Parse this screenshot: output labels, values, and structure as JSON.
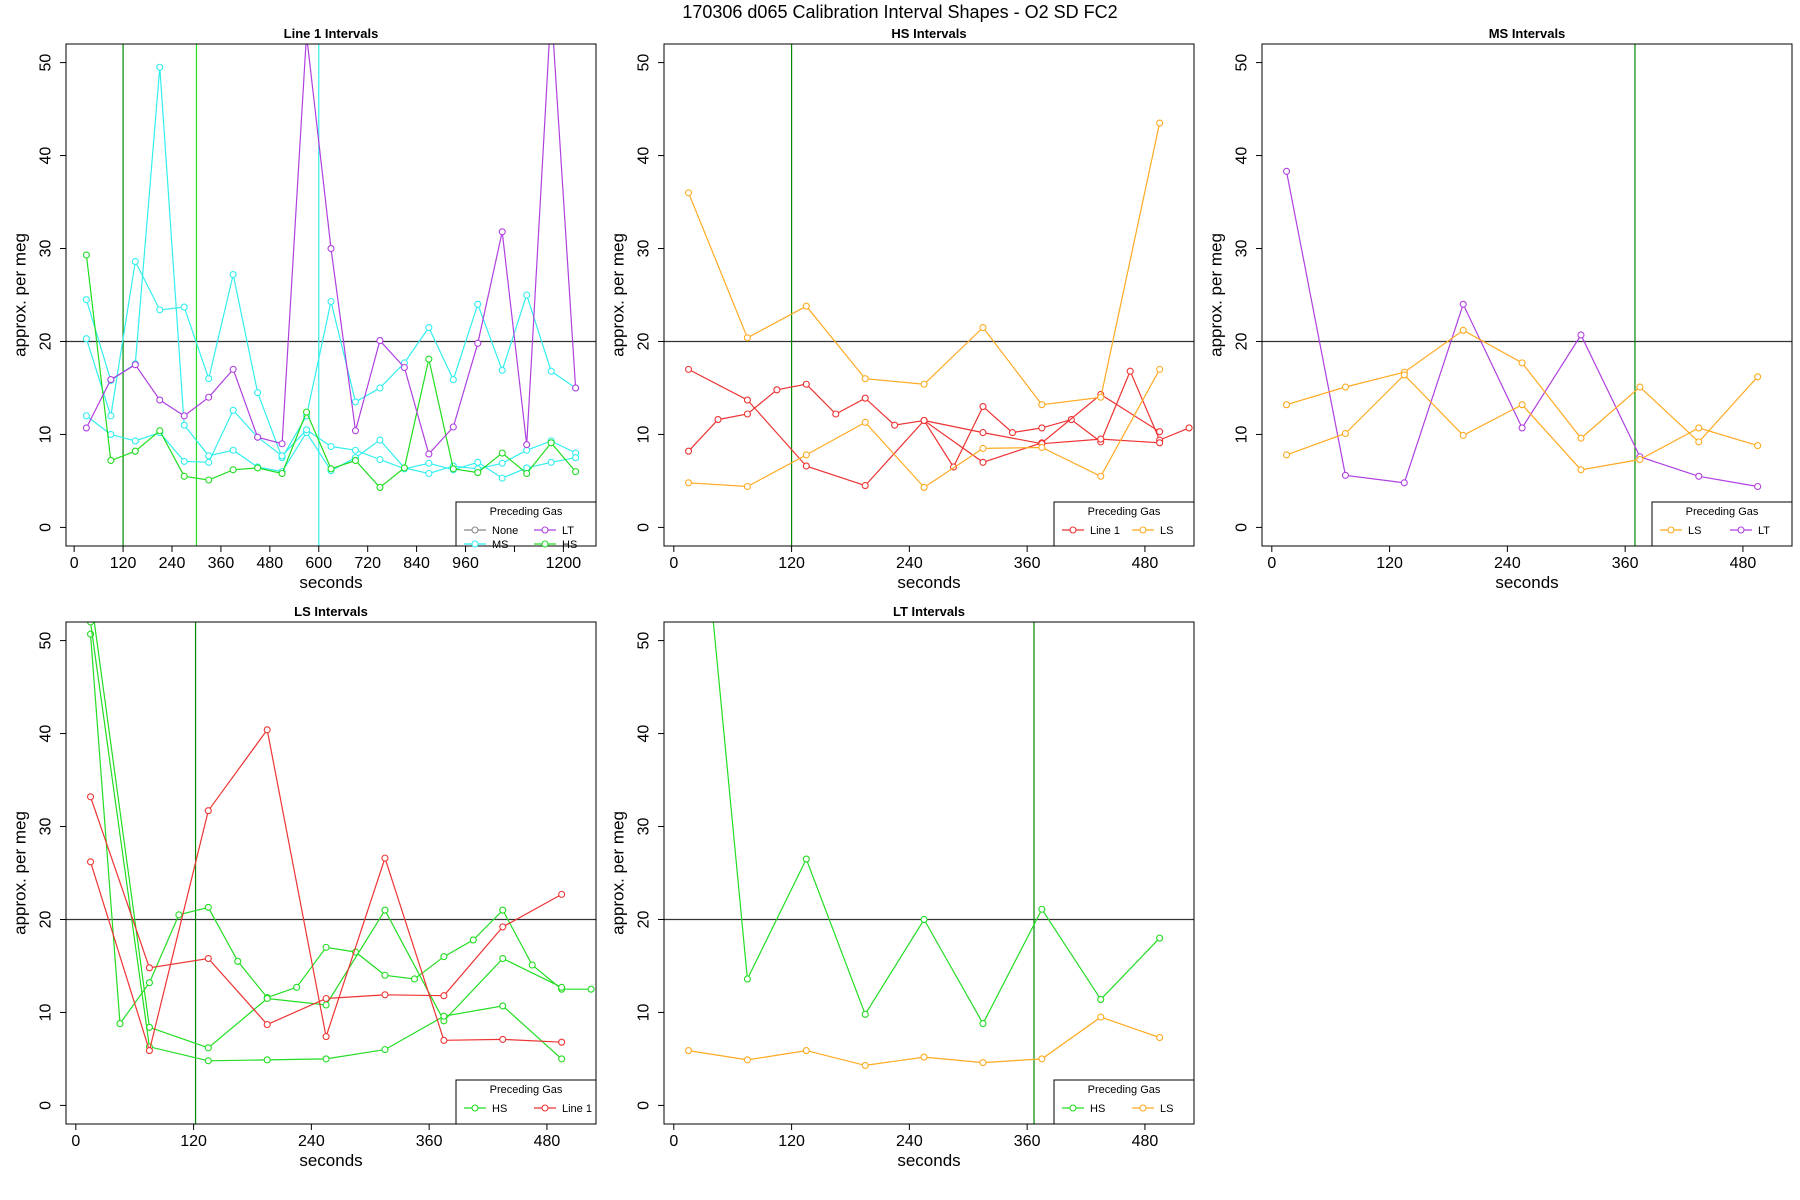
{
  "figure_title": "170306   d065   Calibration Interval Shapes - O2 SD FC2",
  "legend_title": "Preceding Gas",
  "colors": {
    "None": "#888888",
    "MS": "#33eeee",
    "LT": "#b040e0",
    "HS": "#22dd22",
    "Line 1": "#ee3333",
    "LS": "#ffaa22",
    "ref": "#333333",
    "marker": "#008800"
  },
  "chart_data": [
    {
      "type": "line",
      "title": "Line 1 Intervals",
      "xlabel": "seconds",
      "ylabel": "approx. per meg",
      "xlim": [
        -20,
        1280
      ],
      "ylim": [
        -2,
        52
      ],
      "xticks": [
        0,
        120,
        240,
        360,
        480,
        600,
        720,
        840,
        960,
        1080,
        1200
      ],
      "xtick_labels": [
        "0",
        "120",
        "240",
        "360",
        "480",
        "600",
        "720",
        "840",
        "960",
        "",
        "1200"
      ],
      "yticks": [
        0,
        10,
        20,
        30,
        40,
        50
      ],
      "hline": 20,
      "vlines": [
        {
          "x": 120,
          "gas": "marker"
        },
        {
          "x": 300,
          "gas": "HS"
        },
        {
          "x": 600,
          "gas": "MS"
        }
      ],
      "legend": {
        "position": "bottom-right",
        "cols": 2,
        "entries": [
          "None",
          "LT",
          "MS",
          "HS"
        ]
      },
      "series": [
        {
          "gas": "MS",
          "x": [
            30,
            90,
            150,
            210,
            270,
            330,
            390,
            450,
            510,
            570,
            630,
            690,
            750,
            810,
            870,
            930,
            990,
            1050,
            1110,
            1170,
            1230
          ],
          "y": [
            20.3,
            12,
            28.6,
            23.4,
            23.7,
            16,
            27.2,
            14.5,
            7.5,
            12,
            24.3,
            13.5,
            15,
            17.7,
            21.5,
            15.9,
            24,
            16.9,
            25,
            16.8,
            15
          ]
        },
        {
          "gas": "MS",
          "x": [
            30,
            90,
            150,
            210,
            270,
            330,
            390,
            450,
            510,
            570,
            630,
            690,
            750,
            810,
            870,
            930,
            990,
            1050,
            1110,
            1170,
            1230
          ],
          "y": [
            24.5,
            15.8,
            17.6,
            49.5,
            11,
            7.7,
            8.3,
            6.5,
            6,
            10.2,
            6.1,
            7.5,
            9.4,
            6.4,
            5.8,
            6.6,
            6.3,
            6.9,
            8.3,
            9.3,
            8
          ]
        },
        {
          "gas": "MS",
          "x": [
            30,
            90,
            150,
            210,
            270,
            330,
            390,
            450,
            510,
            570,
            630,
            690,
            750,
            810,
            870,
            930,
            990,
            1050,
            1110,
            1170,
            1230
          ],
          "y": [
            12,
            10,
            9.3,
            10.2,
            7.1,
            7,
            12.6,
            9.7,
            7.7,
            10.5,
            8.7,
            8.3,
            7.3,
            6.3,
            6.9,
            6.2,
            7,
            5.3,
            6.4,
            7,
            7.5
          ]
        },
        {
          "gas": "HS",
          "x": [
            30,
            90,
            150,
            210,
            270,
            330,
            390,
            450,
            510,
            570,
            630,
            690,
            750,
            810,
            870,
            930,
            990,
            1050,
            1110,
            1170,
            1230
          ],
          "y": [
            29.3,
            7.2,
            8.2,
            10.4,
            5.5,
            5.1,
            6.2,
            6.4,
            5.8,
            12.4,
            6.3,
            7.2,
            4.3,
            6.4,
            18.1,
            6.3,
            5.9,
            8,
            5.8,
            9.1,
            6
          ]
        },
        {
          "gas": "LT",
          "x": [
            30,
            90,
            150,
            210,
            270,
            330,
            390,
            450,
            510,
            570,
            630,
            690,
            750,
            810,
            870,
            930,
            990,
            1050,
            1110,
            1170,
            1230
          ],
          "y": [
            10.7,
            15.9,
            17.5,
            13.7,
            12,
            14,
            17,
            9.7,
            9,
            53,
            30,
            10.4,
            20.1,
            17.2,
            7.9,
            10.8,
            19.8,
            31.8,
            8.9,
            56,
            15
          ]
        }
      ]
    },
    {
      "type": "line",
      "title": "HS Intervals",
      "xlabel": "seconds",
      "ylabel": "approx. per meg",
      "xlim": [
        -10,
        530
      ],
      "ylim": [
        -2,
        52
      ],
      "xticks": [
        0,
        120,
        240,
        360,
        480
      ],
      "xtick_labels": [
        "0",
        "120",
        "240",
        "360",
        "480"
      ],
      "yticks": [
        0,
        10,
        20,
        30,
        40,
        50
      ],
      "hline": 20,
      "vlines": [
        {
          "x": 120,
          "gas": "marker"
        }
      ],
      "legend": {
        "position": "bottom-right",
        "cols": 2,
        "entries": [
          "Line 1",
          "LS"
        ]
      },
      "series": [
        {
          "gas": "Line 1",
          "x": [
            15,
            45,
            75,
            105,
            135,
            165,
            195,
            225,
            255,
            285,
            315,
            345,
            375,
            405,
            435,
            465,
            495,
            525
          ],
          "y": [
            8.2,
            11.6,
            12.2,
            14.8,
            15.4,
            12.2,
            13.9,
            11,
            11.5,
            6.5,
            13,
            10.2,
            10.7,
            11.6,
            9.2,
            16.8,
            9.4,
            10.7
          ]
        },
        {
          "gas": "Line 1",
          "x": [
            15,
            75,
            135,
            195,
            255,
            315,
            375,
            435,
            495
          ],
          "y": [
            17,
            13.7,
            6.6,
            4.5,
            11.5,
            7,
            9.1,
            14.3,
            10.3
          ]
        },
        {
          "gas": "Line 1",
          "x": [
            255,
            315,
            375,
            435,
            495
          ],
          "y": [
            11.5,
            10.2,
            9,
            9.5,
            9.1
          ]
        },
        {
          "gas": "LS",
          "x": [
            15,
            75,
            135,
            195,
            255,
            315,
            375,
            435,
            495
          ],
          "y": [
            36,
            20.4,
            23.8,
            16,
            15.4,
            21.5,
            13.2,
            14,
            43.5
          ]
        },
        {
          "gas": "LS",
          "x": [
            15,
            75,
            135,
            195,
            255,
            315,
            375,
            435,
            495
          ],
          "y": [
            4.8,
            4.4,
            7.8,
            11.3,
            4.3,
            8.5,
            8.6,
            5.5,
            17
          ]
        }
      ]
    },
    {
      "type": "line",
      "title": "MS Intervals",
      "xlabel": "seconds",
      "ylabel": "approx. per meg",
      "xlim": [
        -10,
        530
      ],
      "ylim": [
        -2,
        52
      ],
      "xticks": [
        0,
        120,
        240,
        360,
        480
      ],
      "xtick_labels": [
        "0",
        "120",
        "240",
        "360",
        "480"
      ],
      "yticks": [
        0,
        10,
        20,
        30,
        40,
        50
      ],
      "hline": 20,
      "vlines": [
        {
          "x": 370,
          "gas": "marker"
        }
      ],
      "legend": {
        "position": "bottom-right",
        "cols": 2,
        "entries": [
          "LS",
          "LT"
        ]
      },
      "series": [
        {
          "gas": "LT",
          "x": [
            15,
            75,
            135,
            195,
            255,
            315,
            375,
            435,
            495
          ],
          "y": [
            38.3,
            5.6,
            4.8,
            24,
            10.7,
            20.7,
            7.6,
            5.5,
            4.4
          ]
        },
        {
          "gas": "LS",
          "x": [
            15,
            75,
            135,
            195,
            255,
            315,
            375,
            435,
            495
          ],
          "y": [
            13.2,
            15.1,
            16.7,
            21.2,
            17.7,
            9.6,
            15.1,
            9.2,
            16.2
          ]
        },
        {
          "gas": "LS",
          "x": [
            15,
            75,
            135,
            195,
            255,
            315,
            375,
            435,
            495
          ],
          "y": [
            7.8,
            10.1,
            16.4,
            9.9,
            13.2,
            6.2,
            7.3,
            10.7,
            8.8
          ]
        }
      ]
    },
    {
      "type": "line",
      "title": "LS Intervals",
      "xlabel": "seconds",
      "ylabel": "approx. per meg",
      "xlim": [
        -10,
        530
      ],
      "ylim": [
        -2,
        52
      ],
      "xticks": [
        0,
        120,
        240,
        360,
        480
      ],
      "xtick_labels": [
        "0",
        "120",
        "240",
        "360",
        "480"
      ],
      "yticks": [
        0,
        10,
        20,
        30,
        40,
        50
      ],
      "hline": 20,
      "vlines": [
        {
          "x": 122,
          "gas": "marker"
        }
      ],
      "legend": {
        "position": "bottom-right",
        "cols": 2,
        "entries": [
          "HS",
          "Line 1"
        ]
      },
      "series": [
        {
          "gas": "HS",
          "x": [
            15,
            45,
            75,
            105,
            135,
            165,
            195,
            225,
            255,
            285,
            315,
            345,
            375,
            405,
            435,
            465,
            495,
            525
          ],
          "y": [
            50.7,
            8.8,
            13.2,
            20.5,
            21.3,
            15.5,
            11.6,
            12.7,
            17,
            16.5,
            14,
            13.6,
            16,
            17.8,
            21,
            15.1,
            12.5,
            12.5
          ]
        },
        {
          "gas": "HS",
          "x": [
            15,
            75,
            135,
            195,
            255,
            315,
            375,
            435,
            495
          ],
          "y": [
            55,
            8.4,
            6.2,
            11.5,
            10.8,
            21,
            9.1,
            15.8,
            12.7
          ]
        },
        {
          "gas": "HS",
          "x": [
            15,
            75,
            135,
            195,
            255,
            315,
            375,
            435,
            495
          ],
          "y": [
            52,
            6.3,
            4.8,
            4.9,
            5,
            6,
            9.6,
            10.7,
            5
          ]
        },
        {
          "gas": "Line 1",
          "x": [
            15,
            75,
            135,
            195,
            255,
            315,
            375,
            435,
            495
          ],
          "y": [
            33.2,
            14.8,
            15.8,
            8.7,
            11.5,
            11.9,
            11.8,
            19.2,
            22.7
          ]
        },
        {
          "gas": "Line 1",
          "x": [
            15,
            75,
            135,
            195,
            255,
            315,
            375,
            435,
            495
          ],
          "y": [
            26.2,
            5.9,
            31.7,
            40.4,
            7.4,
            26.6,
            7,
            7.1,
            6.8
          ]
        }
      ]
    },
    {
      "type": "line",
      "title": "LT Intervals",
      "xlabel": "seconds",
      "ylabel": "approx. per meg",
      "xlim": [
        -10,
        530
      ],
      "ylim": [
        -2,
        52
      ],
      "xticks": [
        0,
        120,
        240,
        360,
        480
      ],
      "xtick_labels": [
        "0",
        "120",
        "240",
        "360",
        "480"
      ],
      "yticks": [
        0,
        10,
        20,
        30,
        40,
        50
      ],
      "hline": 20,
      "vlines": [
        {
          "x": 367,
          "gas": "marker"
        }
      ],
      "legend": {
        "position": "bottom-right",
        "cols": 2,
        "entries": [
          "HS",
          "LS"
        ]
      },
      "series": [
        {
          "gas": "HS",
          "x": [
            15,
            75,
            135,
            195,
            255,
            315,
            375,
            435,
            495
          ],
          "y": [
            80,
            13.6,
            26.5,
            9.8,
            20,
            8.8,
            21.1,
            11.4,
            18
          ]
        },
        {
          "gas": "LS",
          "x": [
            15,
            75,
            135,
            195,
            255,
            315,
            375,
            435,
            495
          ],
          "y": [
            5.9,
            4.9,
            5.9,
            4.3,
            5.2,
            4.6,
            5,
            9.5,
            7.3
          ]
        }
      ]
    }
  ]
}
